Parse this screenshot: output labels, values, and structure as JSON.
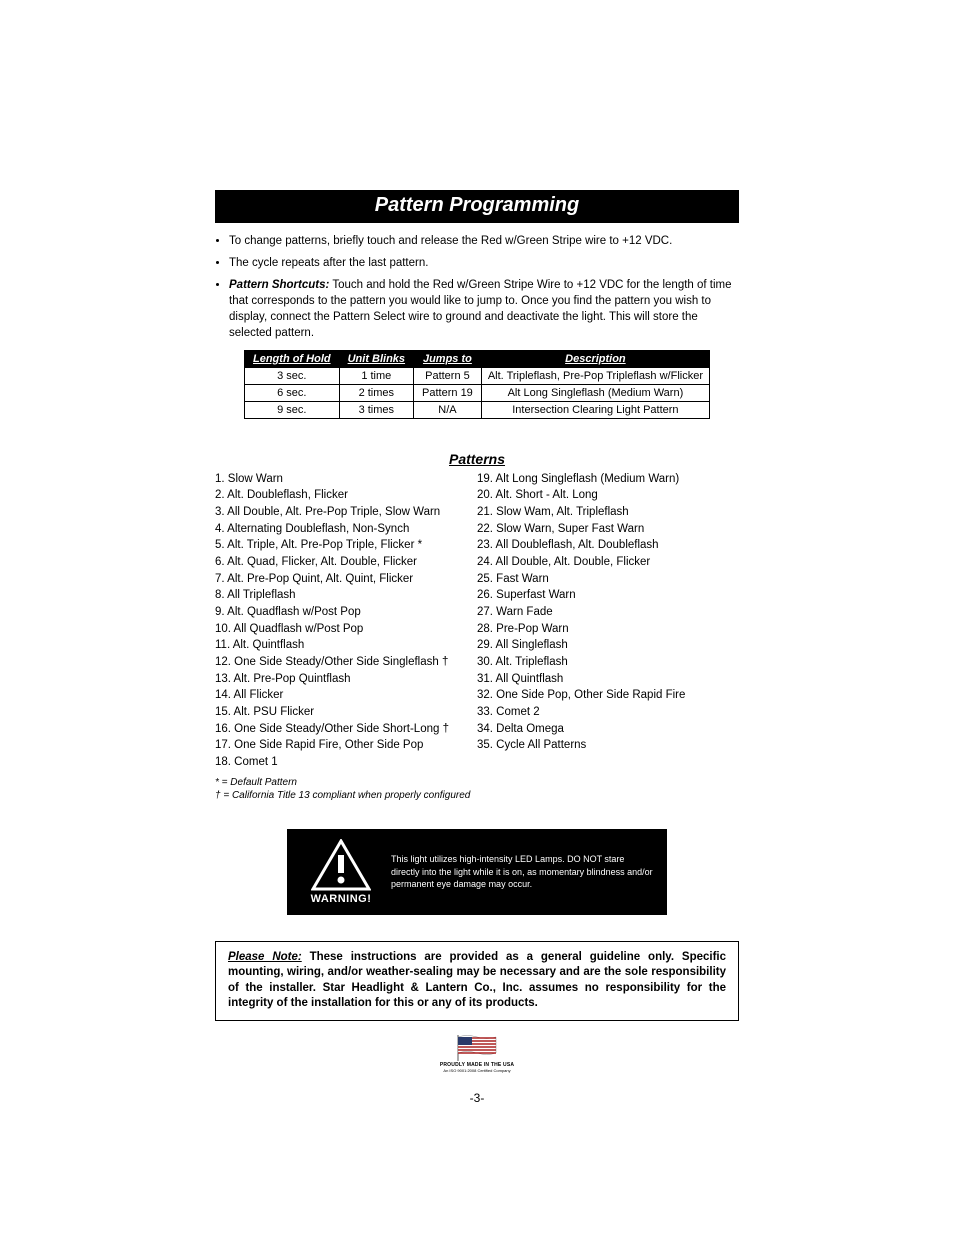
{
  "title": "Pattern Programming",
  "bullets": [
    {
      "html": "To change patterns, briefly touch and release the Red w/Green Stripe wire to +12 VDC."
    },
    {
      "html": "The cycle repeats after the last pattern."
    },
    {
      "html": "<b><i>Pattern Shortcuts:</i></b> Touch and hold the Red w/Green Stripe Wire to +12 VDC for the length of time that corresponds to the pattern you would like to jump to.  Once you find the pattern you wish to display, connect the Pattern Select wire to ground  and deactivate the light.  This will store the selected pattern."
    }
  ],
  "shortcut_table": {
    "headers": [
      "Length of Hold",
      "Unit Blinks",
      "Jumps to",
      "Description"
    ],
    "rows": [
      [
        "3 sec.",
        "1 time",
        "Pattern 5",
        "Alt. Tripleflash, Pre-Pop Tripleflash w/Flicker"
      ],
      [
        "6 sec.",
        "2 times",
        "Pattern 19",
        "Alt Long Singleflash (Medium Warn)"
      ],
      [
        "9 sec.",
        "3 times",
        "N/A",
        "Intersection Clearing Light  Pattern"
      ]
    ]
  },
  "patterns_heading": "Patterns",
  "patterns_left": [
    "1.   Slow Warn",
    "2.   Alt. Doubleflash, Flicker",
    "3.   All Double, Alt. Pre-Pop Triple, Slow Warn",
    "4.   Alternating Doubleflash, Non-Synch",
    "5.   Alt. Triple, Alt. Pre-Pop Triple, Flicker *",
    "6.   Alt. Quad, Flicker, Alt. Double, Flicker",
    "7.   Alt. Pre-Pop Quint, Alt. Quint, Flicker",
    "8.   All Tripleflash",
    "9.   Alt. Quadflash w/Post Pop",
    "10. All Quadflash w/Post Pop",
    "11. Alt. Quintflash",
    "12. One Side Steady/Other Side Singleflash †",
    "13. Alt. Pre-Pop Quintflash",
    "14. All Flicker",
    "15. Alt. PSU Flicker",
    "16. One Side Steady/Other Side Short-Long †",
    "17. One Side Rapid Fire, Other Side Pop",
    "18. Comet 1"
  ],
  "patterns_right": [
    "19. Alt Long Singleflash (Medium Warn)",
    "20. Alt. Short - Alt. Long",
    "21. Slow Wam, Alt. Tripleflash",
    "22. Slow Warn, Super Fast Warn",
    "23. All Doubleflash, Alt. Doubleflash",
    "24. All Double, Alt. Double, Flicker",
    "25. Fast Warn",
    "26. Superfast Warn",
    "27. Warn Fade",
    "28. Pre-Pop Warn",
    "29. All Singleflash",
    "30. Alt. Tripleflash",
    "31. All Quintflash",
    "32. One Side Pop, Other Side Rapid Fire",
    "33. Comet 2",
    "34. Delta Omega",
    "35. Cycle All Patterns"
  ],
  "footnote_1": "* = Default Pattern",
  "footnote_2": "† = California Title 13 compliant when properly configured",
  "warning_label": "WARNING!",
  "warning_text": "This light utilizes high-intensity LED Lamps. DO NOT stare directly into the light while it is on, as momentary blindness and/or permanent eye damage may occur.",
  "note_lead": "Please Note:",
  "note_body": " These instructions are provided as a general guideline only.  Specific mounting, wiring, and/or weather-sealing may be necessary and are the sole responsibility of the installer.  Star Headlight & Lantern Co., Inc. assumes no responsibility for the integrity of the installation for this or any of its products.",
  "flag_caption_1": "PROUDLY MADE IN THE USA",
  "flag_caption_2": "An ISO 9001:2008 Certified Company",
  "page_number": "-3-"
}
